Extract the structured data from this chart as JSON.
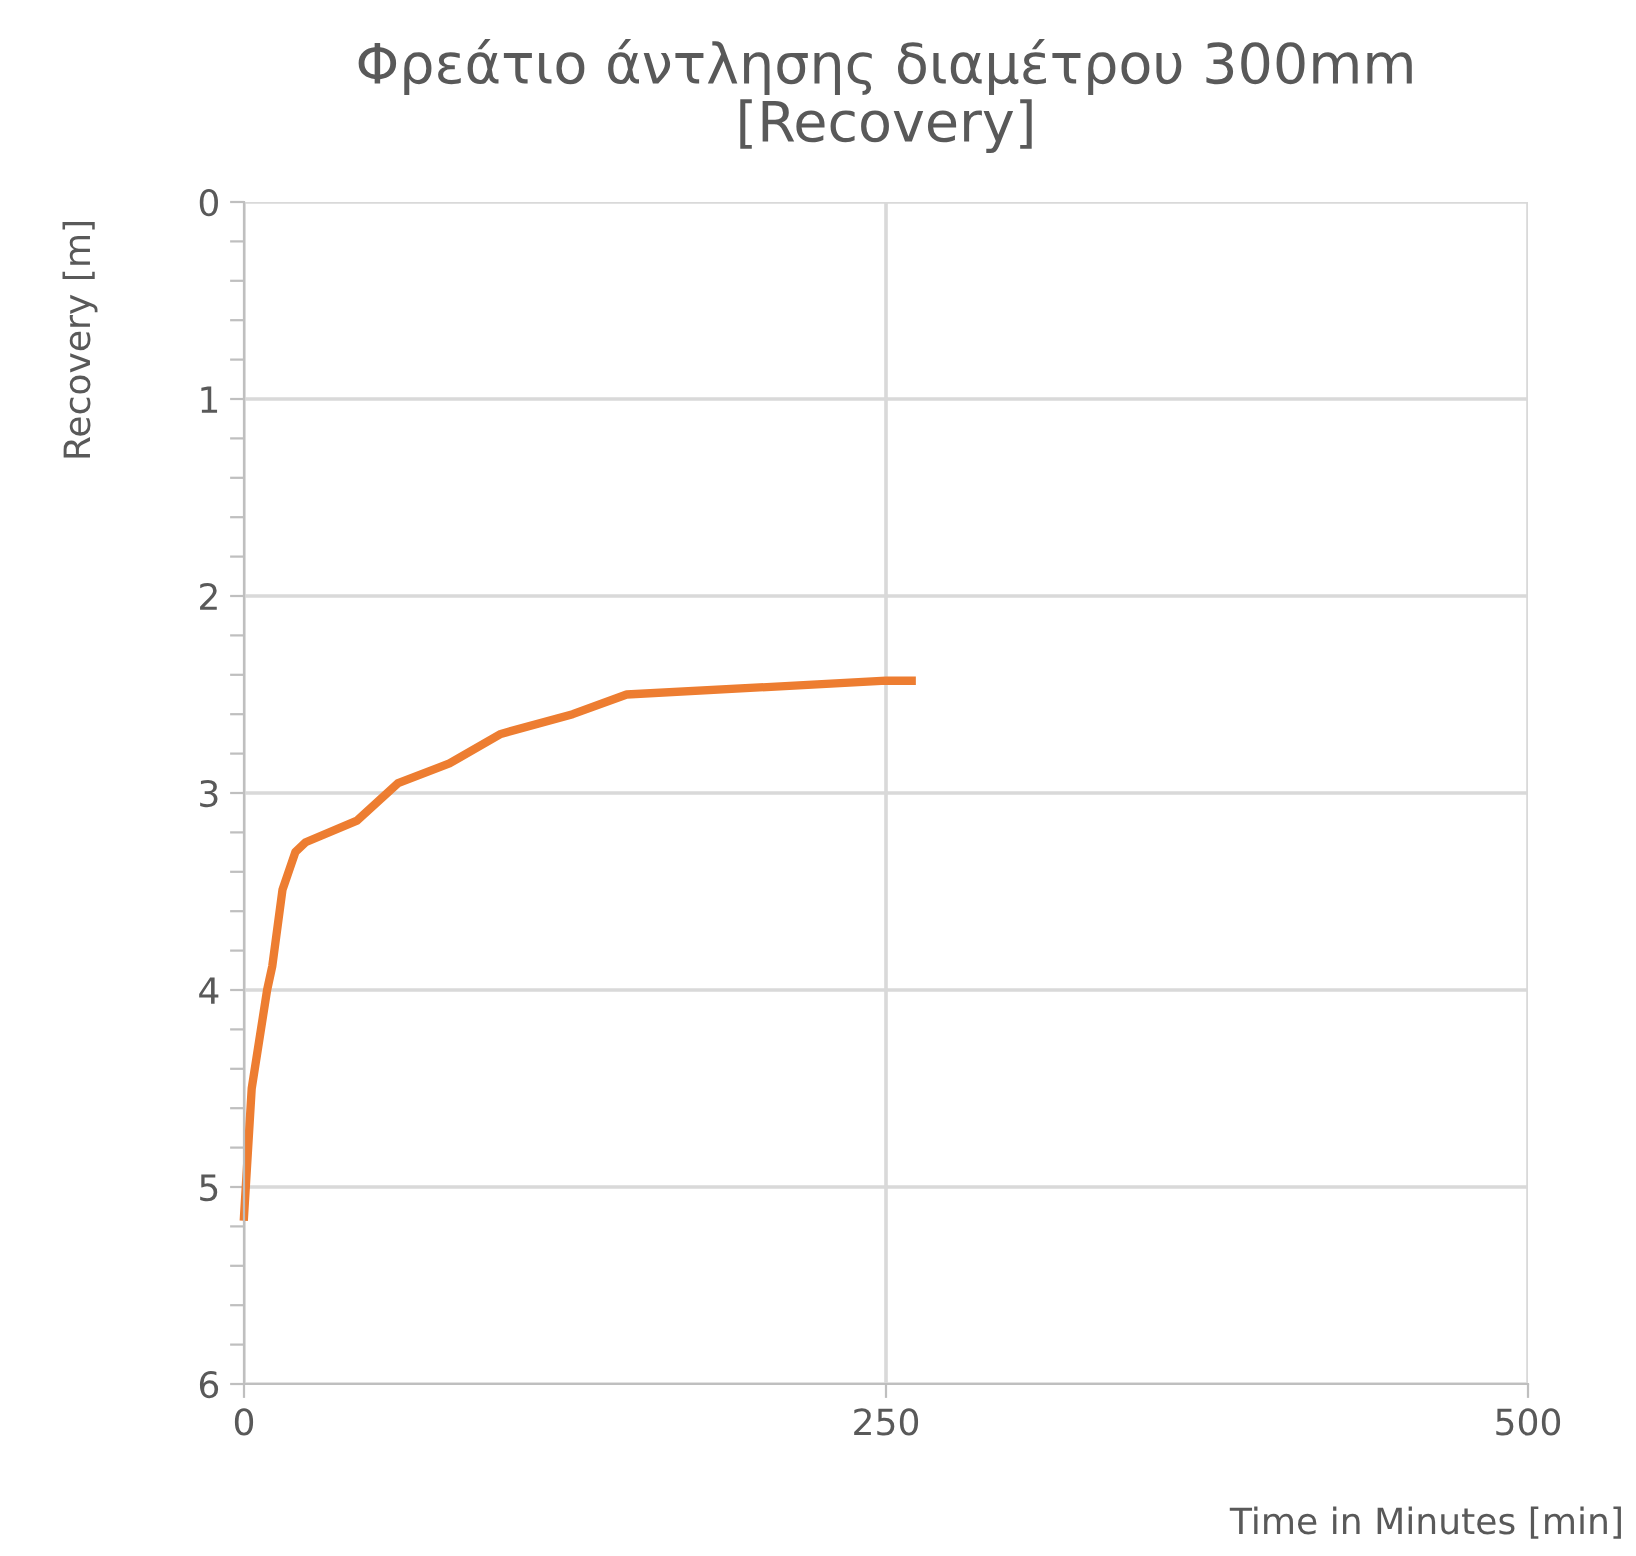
{
  "chart_data": {
    "type": "line",
    "title": "Φρεάτιο άντλησης διαμέτρου 300mm\n[Recovery]",
    "xlabel": "Time in Minutes [min]",
    "ylabel": "Recovery [m]",
    "x": [
      0,
      3,
      9,
      11,
      15,
      20,
      24,
      44,
      60,
      80,
      100,
      128,
      149,
      250,
      260
    ],
    "series": [
      {
        "color": "#ed7d31",
        "values": [
          5.15,
          4.5,
          4.0,
          3.88,
          3.49,
          3.3,
          3.25,
          3.14,
          2.95,
          2.85,
          2.7,
          2.6,
          2.5,
          2.43,
          2.43
        ]
      }
    ],
    "xlim": [
      0,
      500
    ],
    "xticks": [
      0,
      250,
      500
    ],
    "ylim": [
      6,
      0
    ],
    "yticks": [
      0,
      {
        "value": 0.2,
        "label": null
      },
      {
        "value": 0.4,
        "label": null
      },
      {
        "value": 0.6,
        "label": null
      },
      {
        "value": 0.8,
        "label": null
      },
      1,
      {
        "value": 1.2,
        "label": null
      },
      {
        "value": 1.4,
        "label": null
      },
      {
        "value": 1.6,
        "label": null
      },
      {
        "value": 1.8,
        "label": null
      },
      2,
      {
        "value": 2.2,
        "label": null
      },
      {
        "value": 2.4,
        "label": null
      },
      {
        "value": 2.6,
        "label": null
      },
      {
        "value": 2.8,
        "label": null
      },
      3,
      {
        "value": 3.2,
        "label": null
      },
      {
        "value": 3.4,
        "label": null
      },
      {
        "value": 3.6,
        "label": null
      },
      {
        "value": 3.8,
        "label": null
      },
      4,
      {
        "value": 4.2,
        "label": null
      },
      {
        "value": 4.4,
        "label": null
      },
      {
        "value": 4.6,
        "label": null
      },
      {
        "value": 4.8,
        "label": null
      },
      5,
      {
        "value": 5.2,
        "label": null
      },
      {
        "value": 5.4,
        "label": null
      },
      {
        "value": 5.6,
        "label": null
      },
      {
        "value": 5.8,
        "label": null
      },
      6
    ],
    "grid": true,
    "marker": "none",
    "line_style": "solid"
  }
}
